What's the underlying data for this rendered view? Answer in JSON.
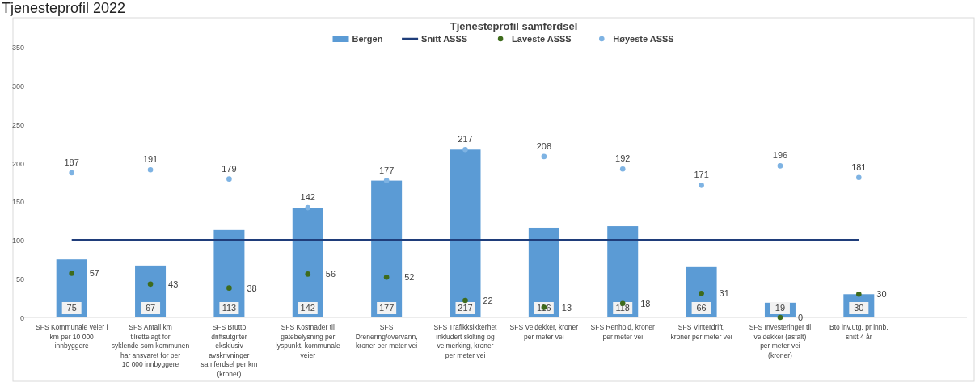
{
  "chart_data": {
    "type": "bar",
    "title": "Tjenesteprofil samferdsel",
    "annotations": [
      "Tjenesteprofil 2022"
    ],
    "categories": [
      "SFS Kommunale veier i km per 10 000 innbyggere",
      "SFS Antall km tilrettelagt for syklende som kommunen har ansvaret for per 10 000 innbyggere",
      "SFS Brutto driftsutgifter eksklusiv avskrivninger samferdsel per km (kroner)",
      "SFS Kostnader til gatebelysning per lyspunkt, kommunale veier",
      "SFS Drenering/overvann, kroner per meter vei",
      "SFS Trafikksikkerhet inkludert skilting og veimerking, kroner per meter vei",
      "SFS Veidekker, kroner per meter vei",
      "SFS Renhold, kroner per meter vei",
      "SFS Vinterdrift, kroner per meter vei",
      "SFS Investeringer til veidekker (asfalt) per meter vei (kroner)",
      "Bto inv.utg. pr innb. snitt 4 år"
    ],
    "series": [
      {
        "name": "Bergen",
        "color": "#5b9bd5",
        "values": [
          75,
          67,
          113,
          142,
          177,
          217,
          116,
          118,
          66,
          19,
          30
        ],
        "value_labels": [
          "75",
          "67",
          "113",
          "142",
          "177",
          "217",
          "116",
          "118",
          "66",
          "19",
          "30"
        ]
      },
      {
        "name": "Snitt ASSS",
        "type": "line",
        "marker": "none",
        "color": "#1f3d7a",
        "values": [
          100,
          100,
          100,
          100,
          100,
          100,
          100,
          100,
          100,
          100,
          100
        ]
      },
      {
        "name": "Laveste ASSS",
        "type": "scatter",
        "color": "#3e6b1c",
        "values": [
          57,
          43,
          38,
          56,
          52,
          22,
          13,
          18,
          31,
          0,
          30
        ],
        "value_labels": [
          "57",
          "43",
          "38",
          "56",
          "52",
          "22",
          "13",
          "18",
          "31",
          "0",
          "30"
        ]
      },
      {
        "name": "Høyeste ASSS",
        "type": "scatter",
        "color": "#7eb3e3",
        "values": [
          187,
          191,
          179,
          142,
          177,
          217,
          208,
          192,
          171,
          196,
          181
        ],
        "value_labels": [
          "187",
          "191",
          "179",
          "142",
          "177",
          "217",
          "208",
          "192",
          "171",
          "196",
          "181"
        ]
      }
    ],
    "ylim": [
      0,
      350
    ],
    "yticks": [
      0,
      50,
      100,
      150,
      200,
      250,
      300,
      350
    ],
    "legend": "top",
    "marker": "circle"
  }
}
